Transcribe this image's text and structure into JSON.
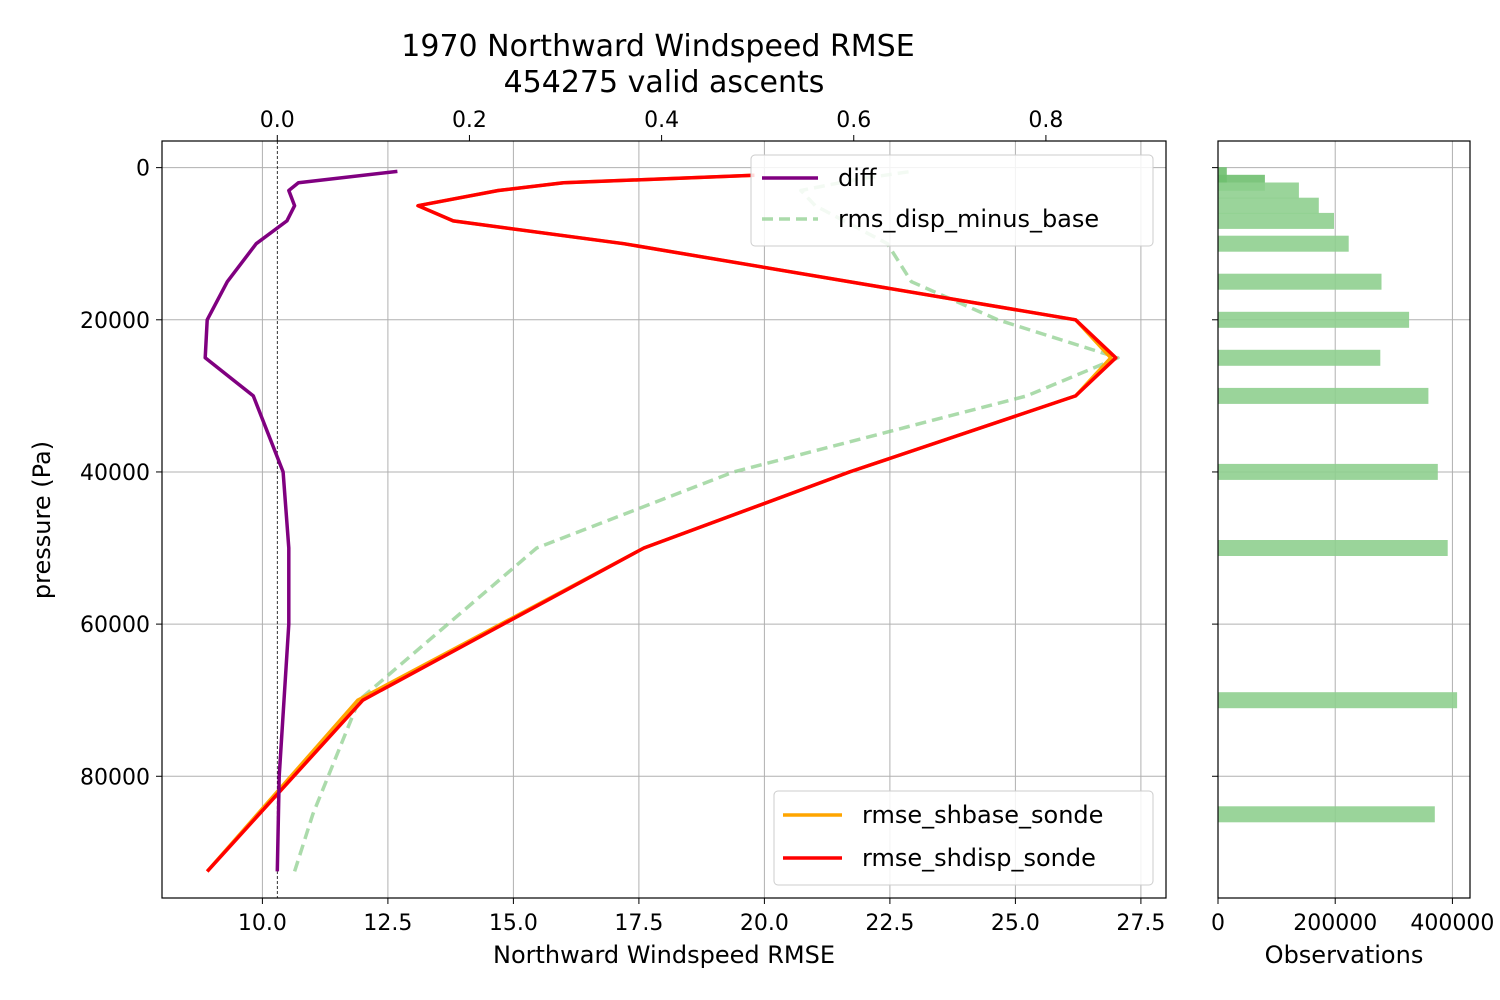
{
  "title_line1": "1970 Northward Windspeed RMSE",
  "title_line2": "454275 valid ascents",
  "chart_data": [
    {
      "type": "line",
      "xlabel": "Northward Windspeed RMSE",
      "ylabel": "pressure (Pa)",
      "x_bottom_ticks": [
        "10.0",
        "12.5",
        "15.0",
        "17.5",
        "20.0",
        "22.5",
        "25.0",
        "27.5"
      ],
      "x_top_ticks": [
        "0.0",
        "0.2",
        "0.4",
        "0.6",
        "0.8"
      ],
      "y_ticks": [
        "0",
        "20000",
        "40000",
        "60000",
        "80000"
      ],
      "xlim_bottom": [
        8.0,
        28.0
      ],
      "xlim_top": [
        -0.12,
        0.925
      ],
      "ylim": [
        96000,
        -3500
      ],
      "y_inverted": true,
      "grid": true,
      "legend_top": "top-right",
      "legend_bottom": "bottom-right",
      "series": [
        {
          "name": "rmse_shbase_sonde",
          "axis": "bottom",
          "color": "#ffa500",
          "style": "solid",
          "points": [
            [
              8.9,
              92500
            ],
            [
              11.9,
              70000
            ],
            [
              17.6,
              50000
            ],
            [
              21.7,
              40000
            ],
            [
              26.2,
              30000
            ],
            [
              26.9,
              25000
            ],
            [
              26.2,
              20000
            ],
            [
              17.2,
              10000
            ],
            [
              13.8,
              7000
            ],
            [
              13.1,
              5000
            ],
            [
              14.7,
              3000
            ],
            [
              16.0,
              2000
            ],
            [
              19.8,
              1000
            ]
          ]
        },
        {
          "name": "rmse_shdisp_sonde",
          "axis": "bottom",
          "color": "#ff0000",
          "style": "solid",
          "points": [
            [
              8.9,
              92500
            ],
            [
              12.0,
              70000
            ],
            [
              17.6,
              50000
            ],
            [
              21.7,
              40000
            ],
            [
              26.2,
              30000
            ],
            [
              27.0,
              25000
            ],
            [
              26.2,
              20000
            ],
            [
              17.2,
              10000
            ],
            [
              13.8,
              7000
            ],
            [
              13.1,
              5000
            ],
            [
              14.7,
              3000
            ],
            [
              16.0,
              2000
            ],
            [
              19.8,
              1000
            ]
          ]
        },
        {
          "name": "diff",
          "axis": "top",
          "color": "#800080",
          "style": "solid",
          "points": [
            [
              0.0,
              92500
            ],
            [
              0.002,
              80000
            ],
            [
              0.007,
              70000
            ],
            [
              0.012,
              60000
            ],
            [
              0.012,
              50000
            ],
            [
              0.006,
              40000
            ],
            [
              -0.025,
              30000
            ],
            [
              -0.075,
              25000
            ],
            [
              -0.073,
              20000
            ],
            [
              -0.052,
              15000
            ],
            [
              -0.022,
              10000
            ],
            [
              0.01,
              7000
            ],
            [
              0.018,
              5000
            ],
            [
              0.012,
              3000
            ],
            [
              0.022,
              2000
            ],
            [
              0.125,
              500
            ]
          ]
        },
        {
          "name": "rms_disp_minus_base",
          "axis": "top",
          "color": "#8fcf8f",
          "style": "dashed",
          "points": [
            [
              0.018,
              92500
            ],
            [
              0.037,
              85000
            ],
            [
              0.085,
              70000
            ],
            [
              0.27,
              50000
            ],
            [
              0.475,
              40000
            ],
            [
              0.78,
              30000
            ],
            [
              0.875,
              25000
            ],
            [
              0.75,
              20000
            ],
            [
              0.66,
              15000
            ],
            [
              0.635,
              10000
            ],
            [
              0.56,
              5000
            ],
            [
              0.545,
              3000
            ],
            [
              0.605,
              1500
            ],
            [
              0.66,
              500
            ]
          ]
        }
      ]
    },
    {
      "type": "bar",
      "orientation": "horizontal",
      "xlabel": "Observations",
      "x_ticks": [
        "0",
        "200000",
        "400000"
      ],
      "xlim": [
        0,
        430000
      ],
      "ylim": [
        96000,
        -3500
      ],
      "color": "#8fcf8f",
      "bars": [
        {
          "pressure": 1000,
          "value": 15000,
          "color": "#6fbf6f"
        },
        {
          "pressure": 2000,
          "value": 80000,
          "color": "#6fbf6f"
        },
        {
          "pressure": 3000,
          "value": 138000,
          "color": "#8fcf8f"
        },
        {
          "pressure": 5000,
          "value": 172000,
          "color": "#8fcf8f"
        },
        {
          "pressure": 7000,
          "value": 198000,
          "color": "#8fcf8f"
        },
        {
          "pressure": 10000,
          "value": 223000,
          "color": "#8fcf8f"
        },
        {
          "pressure": 15000,
          "value": 279000,
          "color": "#8fcf8f"
        },
        {
          "pressure": 20000,
          "value": 326000,
          "color": "#8fcf8f"
        },
        {
          "pressure": 25000,
          "value": 277000,
          "color": "#8fcf8f"
        },
        {
          "pressure": 30000,
          "value": 359000,
          "color": "#8fcf8f"
        },
        {
          "pressure": 40000,
          "value": 375000,
          "color": "#8fcf8f"
        },
        {
          "pressure": 50000,
          "value": 392000,
          "color": "#8fcf8f"
        },
        {
          "pressure": 70000,
          "value": 408000,
          "color": "#8fcf8f"
        },
        {
          "pressure": 85000,
          "value": 370000,
          "color": "#8fcf8f"
        }
      ]
    }
  ]
}
